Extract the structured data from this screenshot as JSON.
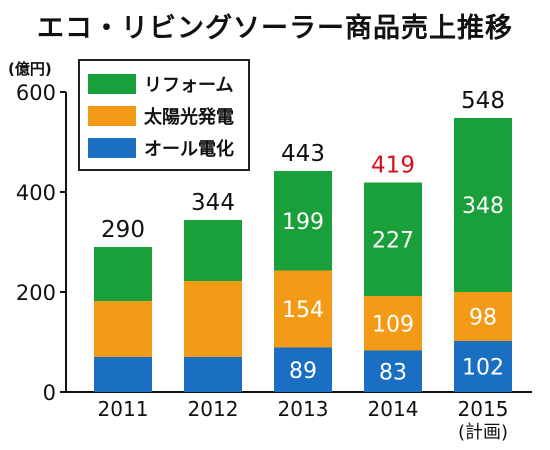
{
  "title": "エコ・リビングソーラー商品売上推移",
  "chart_data": {
    "type": "bar",
    "stacked": true,
    "title": "エコ・リビングソーラー商品売上推移",
    "unit_label": "(億円)",
    "categories": [
      "2011",
      "2012",
      "2013",
      "2014",
      "2015"
    ],
    "category_notes": [
      "",
      "",
      "",
      "",
      "(計画)"
    ],
    "series": [
      {
        "name": "オール電化",
        "color": "#1a6fc2",
        "values": [
          70,
          70,
          89,
          83,
          102
        ],
        "labels": [
          "",
          "",
          "89",
          "83",
          "102"
        ]
      },
      {
        "name": "太陽光発電",
        "color": "#f39a16",
        "values": [
          112,
          152,
          154,
          109,
          98
        ],
        "labels": [
          "",
          "",
          "154",
          "109",
          "98"
        ]
      },
      {
        "name": "リフォーム",
        "color": "#1aa03a",
        "values": [
          108,
          122,
          199,
          227,
          348
        ],
        "labels": [
          "",
          "",
          "199",
          "227",
          "348"
        ]
      }
    ],
    "totals": [
      "290",
      "344",
      "443",
      "419",
      "548"
    ],
    "total_colors": [
      "#111111",
      "#111111",
      "#111111",
      "#d6111a",
      "#111111"
    ],
    "yticks": [
      0,
      200,
      400,
      600
    ],
    "ylim": [
      0,
      600
    ],
    "legend": [
      {
        "name": "リフォーム",
        "color": "#1aa03a"
      },
      {
        "name": "太陽光発電",
        "color": "#f39a16"
      },
      {
        "name": "オール電化",
        "color": "#1a6fc2"
      }
    ],
    "legend_position": "top-left",
    "grid": false
  }
}
